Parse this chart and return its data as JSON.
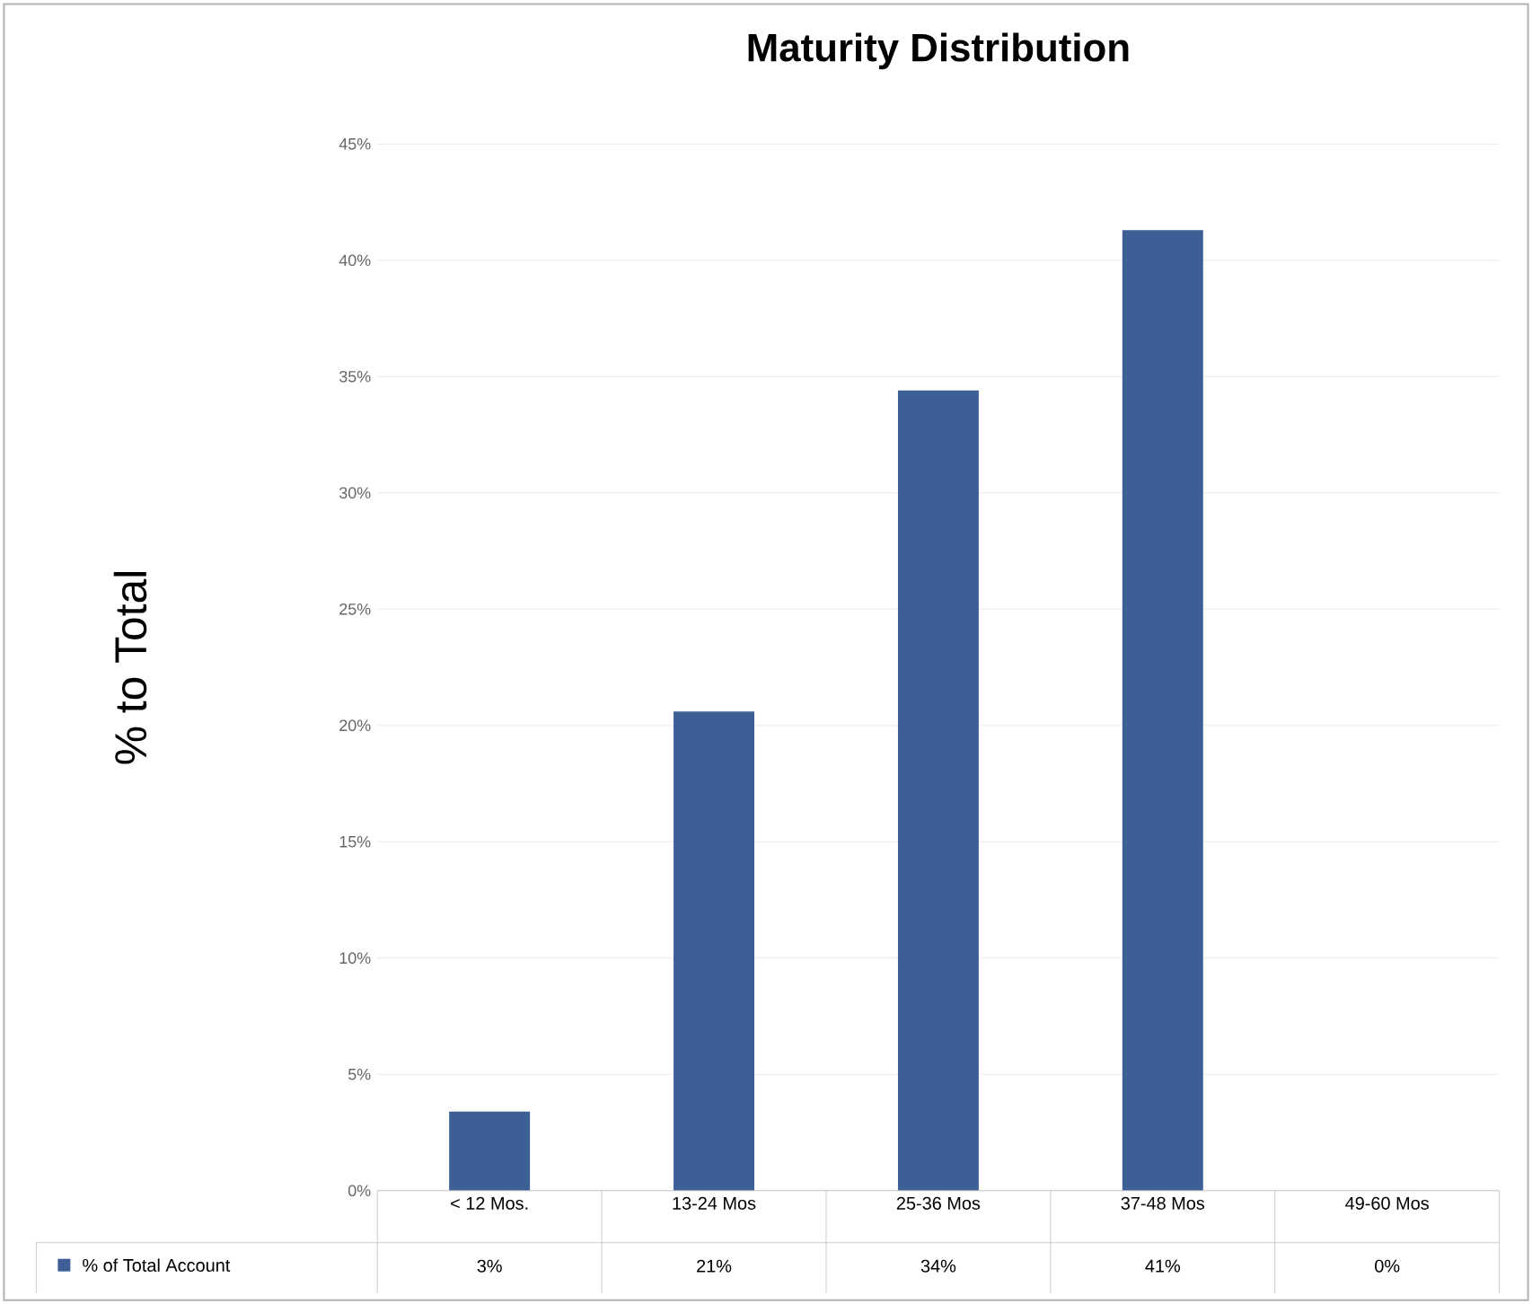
{
  "chart_data": {
    "type": "bar",
    "title": "Maturity Distribution",
    "ylabel": "% to Total",
    "categories": [
      "< 12 Mos.",
      "13-24 Mos",
      "25-36 Mos",
      "37-48 Mos",
      "49-60 Mos"
    ],
    "series": [
      {
        "name": "% of Total Account",
        "color": "#3d5f96",
        "values": [
          3.4,
          20.6,
          34.4,
          41.3,
          0
        ],
        "value_labels": [
          "3%",
          "21%",
          "34%",
          "41%",
          "0%"
        ]
      }
    ],
    "ylim": [
      0,
      45
    ],
    "yticks": [
      {
        "value": 0,
        "label": "0%"
      },
      {
        "value": 5,
        "label": "5%"
      },
      {
        "value": 10,
        "label": "10%"
      },
      {
        "value": 15,
        "label": "15%"
      },
      {
        "value": 20,
        "label": "20%"
      },
      {
        "value": 25,
        "label": "25%"
      },
      {
        "value": 30,
        "label": "30%"
      },
      {
        "value": 35,
        "label": "35%"
      },
      {
        "value": 40,
        "label": "40%"
      },
      {
        "value": 45,
        "label": "45%"
      }
    ],
    "grid": "y",
    "legend": "bottom"
  }
}
